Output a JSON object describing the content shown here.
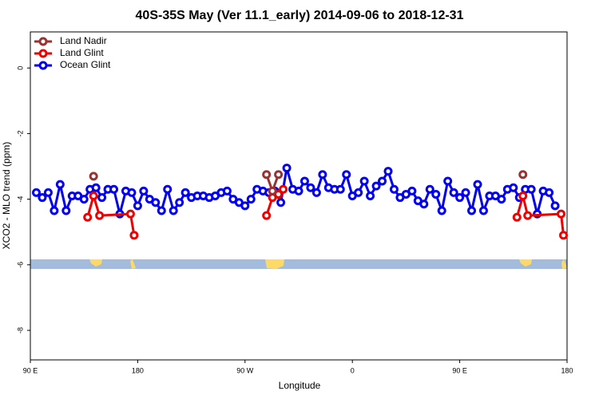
{
  "chart_data": {
    "type": "line",
    "title": "40S-35S May (Ver 11.1_early)   2014-09-06 to 2018-12-31",
    "x_label": "Longitude",
    "y_label": "XCO2 - MLO trend (ppm)",
    "xlim": [
      90,
      540
    ],
    "xticks": [
      {
        "value": 90,
        "label": "90 E"
      },
      {
        "value": 180,
        "label": "180"
      },
      {
        "value": 270,
        "label": "90 W"
      },
      {
        "value": 360,
        "label": "0"
      },
      {
        "value": 450,
        "label": "90 E"
      },
      {
        "value": 540,
        "label": "180"
      }
    ],
    "ylim": [
      -8.9,
      1.1
    ],
    "yticks": [
      0,
      -2,
      -4,
      -6,
      -8
    ],
    "grid": false,
    "legend": "top-left",
    "series": [
      {
        "name": "Land Nadir",
        "color": "#993333",
        "x": [
          143,
          230,
          288,
          293,
          298,
          400,
          503
        ],
        "values": [
          -3.3,
          null,
          -3.25,
          -3.75,
          -3.25,
          null,
          -3.25
        ]
      },
      {
        "name": "Land Glint",
        "color": "#ee0000",
        "x": [
          138,
          143,
          148,
          174,
          177,
          230,
          288,
          293,
          298,
          302,
          400,
          498,
          503,
          507,
          535,
          537
        ],
        "values": [
          -4.55,
          -3.9,
          -4.5,
          -4.45,
          -5.1,
          null,
          -4.5,
          -3.95,
          -3.85,
          -3.7,
          null,
          -4.55,
          -3.9,
          -4.5,
          -4.45,
          -5.1
        ]
      },
      {
        "name": "Ocean Glint",
        "color": "#0000ee",
        "x": [
          95,
          100,
          105,
          110,
          115,
          120,
          125,
          130,
          135,
          140,
          145,
          150,
          155,
          160,
          165,
          170,
          175,
          180,
          185,
          190,
          195,
          200,
          205,
          210,
          215,
          220,
          225,
          230,
          235,
          240,
          245,
          250,
          255,
          260,
          265,
          270,
          275,
          280,
          285,
          290,
          295,
          300,
          305,
          310,
          315,
          320,
          325,
          330,
          335,
          340,
          345,
          350,
          355,
          360,
          365,
          370,
          375,
          380,
          385,
          390,
          395,
          400,
          405,
          410,
          415,
          420,
          425,
          430,
          435,
          440,
          445,
          450,
          455,
          460,
          465,
          470,
          475,
          480,
          485,
          490,
          495,
          500,
          505,
          510,
          515,
          520,
          525,
          530
        ],
        "values": [
          -3.8,
          -3.95,
          -3.8,
          -4.35,
          -3.55,
          -4.35,
          -3.9,
          -3.9,
          -4.0,
          -3.7,
          -3.65,
          -3.95,
          -3.7,
          -3.7,
          -4.45,
          -3.75,
          -3.8,
          -4.2,
          -3.75,
          -4.0,
          -4.1,
          -4.35,
          -3.7,
          -4.35,
          -4.1,
          -3.8,
          -3.95,
          -3.9,
          -3.9,
          -3.95,
          -3.9,
          -3.8,
          -3.75,
          -4.0,
          -4.1,
          -4.2,
          -4.0,
          -3.7,
          -3.75,
          -3.8,
          -3.75,
          -4.1,
          -3.05,
          -3.7,
          -3.75,
          -3.45,
          -3.65,
          -3.8,
          -3.25,
          -3.65,
          -3.7,
          -3.7,
          -3.25,
          -3.9,
          -3.8,
          -3.45,
          -3.9,
          -3.6,
          -3.45,
          -3.15,
          -3.7,
          -3.95,
          -3.85,
          -3.75,
          -4.05,
          -4.15,
          -3.7,
          -3.85,
          -4.35,
          -3.45,
          -3.8,
          -3.95,
          -3.8,
          -4.35,
          -3.55,
          -4.35,
          -3.9,
          -3.9,
          -4.0,
          -3.7,
          -3.65,
          -3.95,
          -3.7,
          -3.7,
          -4.45,
          -3.75,
          -3.8,
          -4.2
        ]
      }
    ]
  }
}
